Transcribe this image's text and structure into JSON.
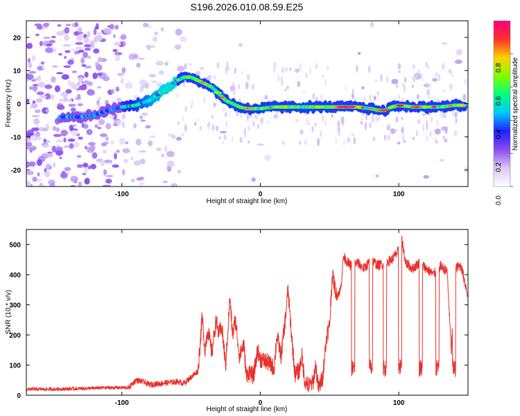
{
  "title": "S196.2026.010.08.59.E25",
  "chart_data": [
    {
      "type": "heatmap",
      "xlabel": "Height of straight line (km)",
      "ylabel": "Frequency (Hz)",
      "xlim": [
        -169,
        150
      ],
      "ylim": [
        -25,
        25
      ],
      "x_ticks": [
        -100,
        0,
        100
      ],
      "y_ticks": [
        -20,
        -10,
        0,
        10,
        20
      ],
      "colorbar": {
        "label": "Normalized spectral amplitude",
        "range": [
          0,
          1
        ],
        "ticks": [
          "0.0",
          "0.2",
          "0.4",
          "0.6",
          "0.8"
        ],
        "colors": [
          "#ffffff",
          "#d9c8f5",
          "#8a4cf0",
          "#2020ff",
          "#00c8ff",
          "#00ff80",
          "#80ff00",
          "#ffd000",
          "#ff3030",
          "#ff0080"
        ]
      },
      "ridge": {
        "x": [
          -145,
          -130,
          -120,
          -110,
          -100,
          -90,
          -80,
          -70,
          -60,
          -55,
          -50,
          -45,
          -40,
          -35,
          -30,
          -25,
          -20,
          -15,
          -10,
          0,
          10,
          20,
          30,
          40,
          50,
          60,
          70,
          80,
          85,
          90,
          95,
          100,
          110,
          120,
          130,
          140,
          148
        ],
        "y": [
          -4,
          -4,
          -3.5,
          -2,
          -1,
          -0.5,
          1,
          4,
          7,
          8,
          8,
          7,
          6,
          5,
          3,
          1,
          0,
          -1,
          -1.5,
          -1.5,
          -1,
          -1,
          -1,
          -1,
          -1,
          -1,
          -1,
          -1.5,
          -2,
          -2,
          -1,
          -0.5,
          -1,
          -1,
          -1,
          -0.5,
          -0.5
        ]
      },
      "grid": false
    },
    {
      "type": "line",
      "xlabel": "Height of straight line (km)",
      "ylabel": "SNR (10 * v/v)",
      "xlim": [
        -169,
        150
      ],
      "ylim": [
        0,
        550
      ],
      "x_ticks": [
        -100,
        0,
        100
      ],
      "y_ticks": [
        0,
        100,
        200,
        300,
        400,
        500
      ],
      "color": "#e8302a",
      "series": [
        {
          "x": [
            -169,
            -150,
            -130,
            -110,
            -95,
            -90,
            -85,
            -80,
            -70,
            -60,
            -55,
            -50,
            -45,
            -42,
            -40,
            -38,
            -35,
            -32,
            -30,
            -28,
            -25,
            -22,
            -20,
            -18,
            -15,
            -12,
            -10,
            -8,
            -5,
            -2,
            0,
            5,
            10,
            12,
            15,
            18,
            20,
            22,
            25,
            28,
            30,
            32,
            35,
            38,
            40,
            42,
            45,
            48,
            50,
            52,
            55,
            58,
            60,
            65,
            70,
            75,
            80,
            85,
            90,
            95,
            100,
            101,
            105,
            110,
            115,
            120,
            125,
            130,
            135,
            138,
            140,
            145,
            150
          ],
          "y": [
            20,
            20,
            22,
            25,
            25,
            50,
            45,
            35,
            40,
            45,
            40,
            60,
            80,
            260,
            150,
            220,
            140,
            250,
            200,
            230,
            100,
            320,
            200,
            250,
            130,
            170,
            60,
            80,
            60,
            150,
            120,
            110,
            90,
            200,
            130,
            250,
            350,
            230,
            70,
            80,
            130,
            50,
            30,
            40,
            100,
            20,
            60,
            200,
            230,
            400,
            330,
            350,
            460,
            430,
            440,
            420,
            450,
            430,
            440,
            450,
            480,
            550,
            440,
            420,
            440,
            420,
            400,
            430,
            410,
            140,
            420,
            430,
            330
          ]
        }
      ],
      "grid": false
    }
  ]
}
